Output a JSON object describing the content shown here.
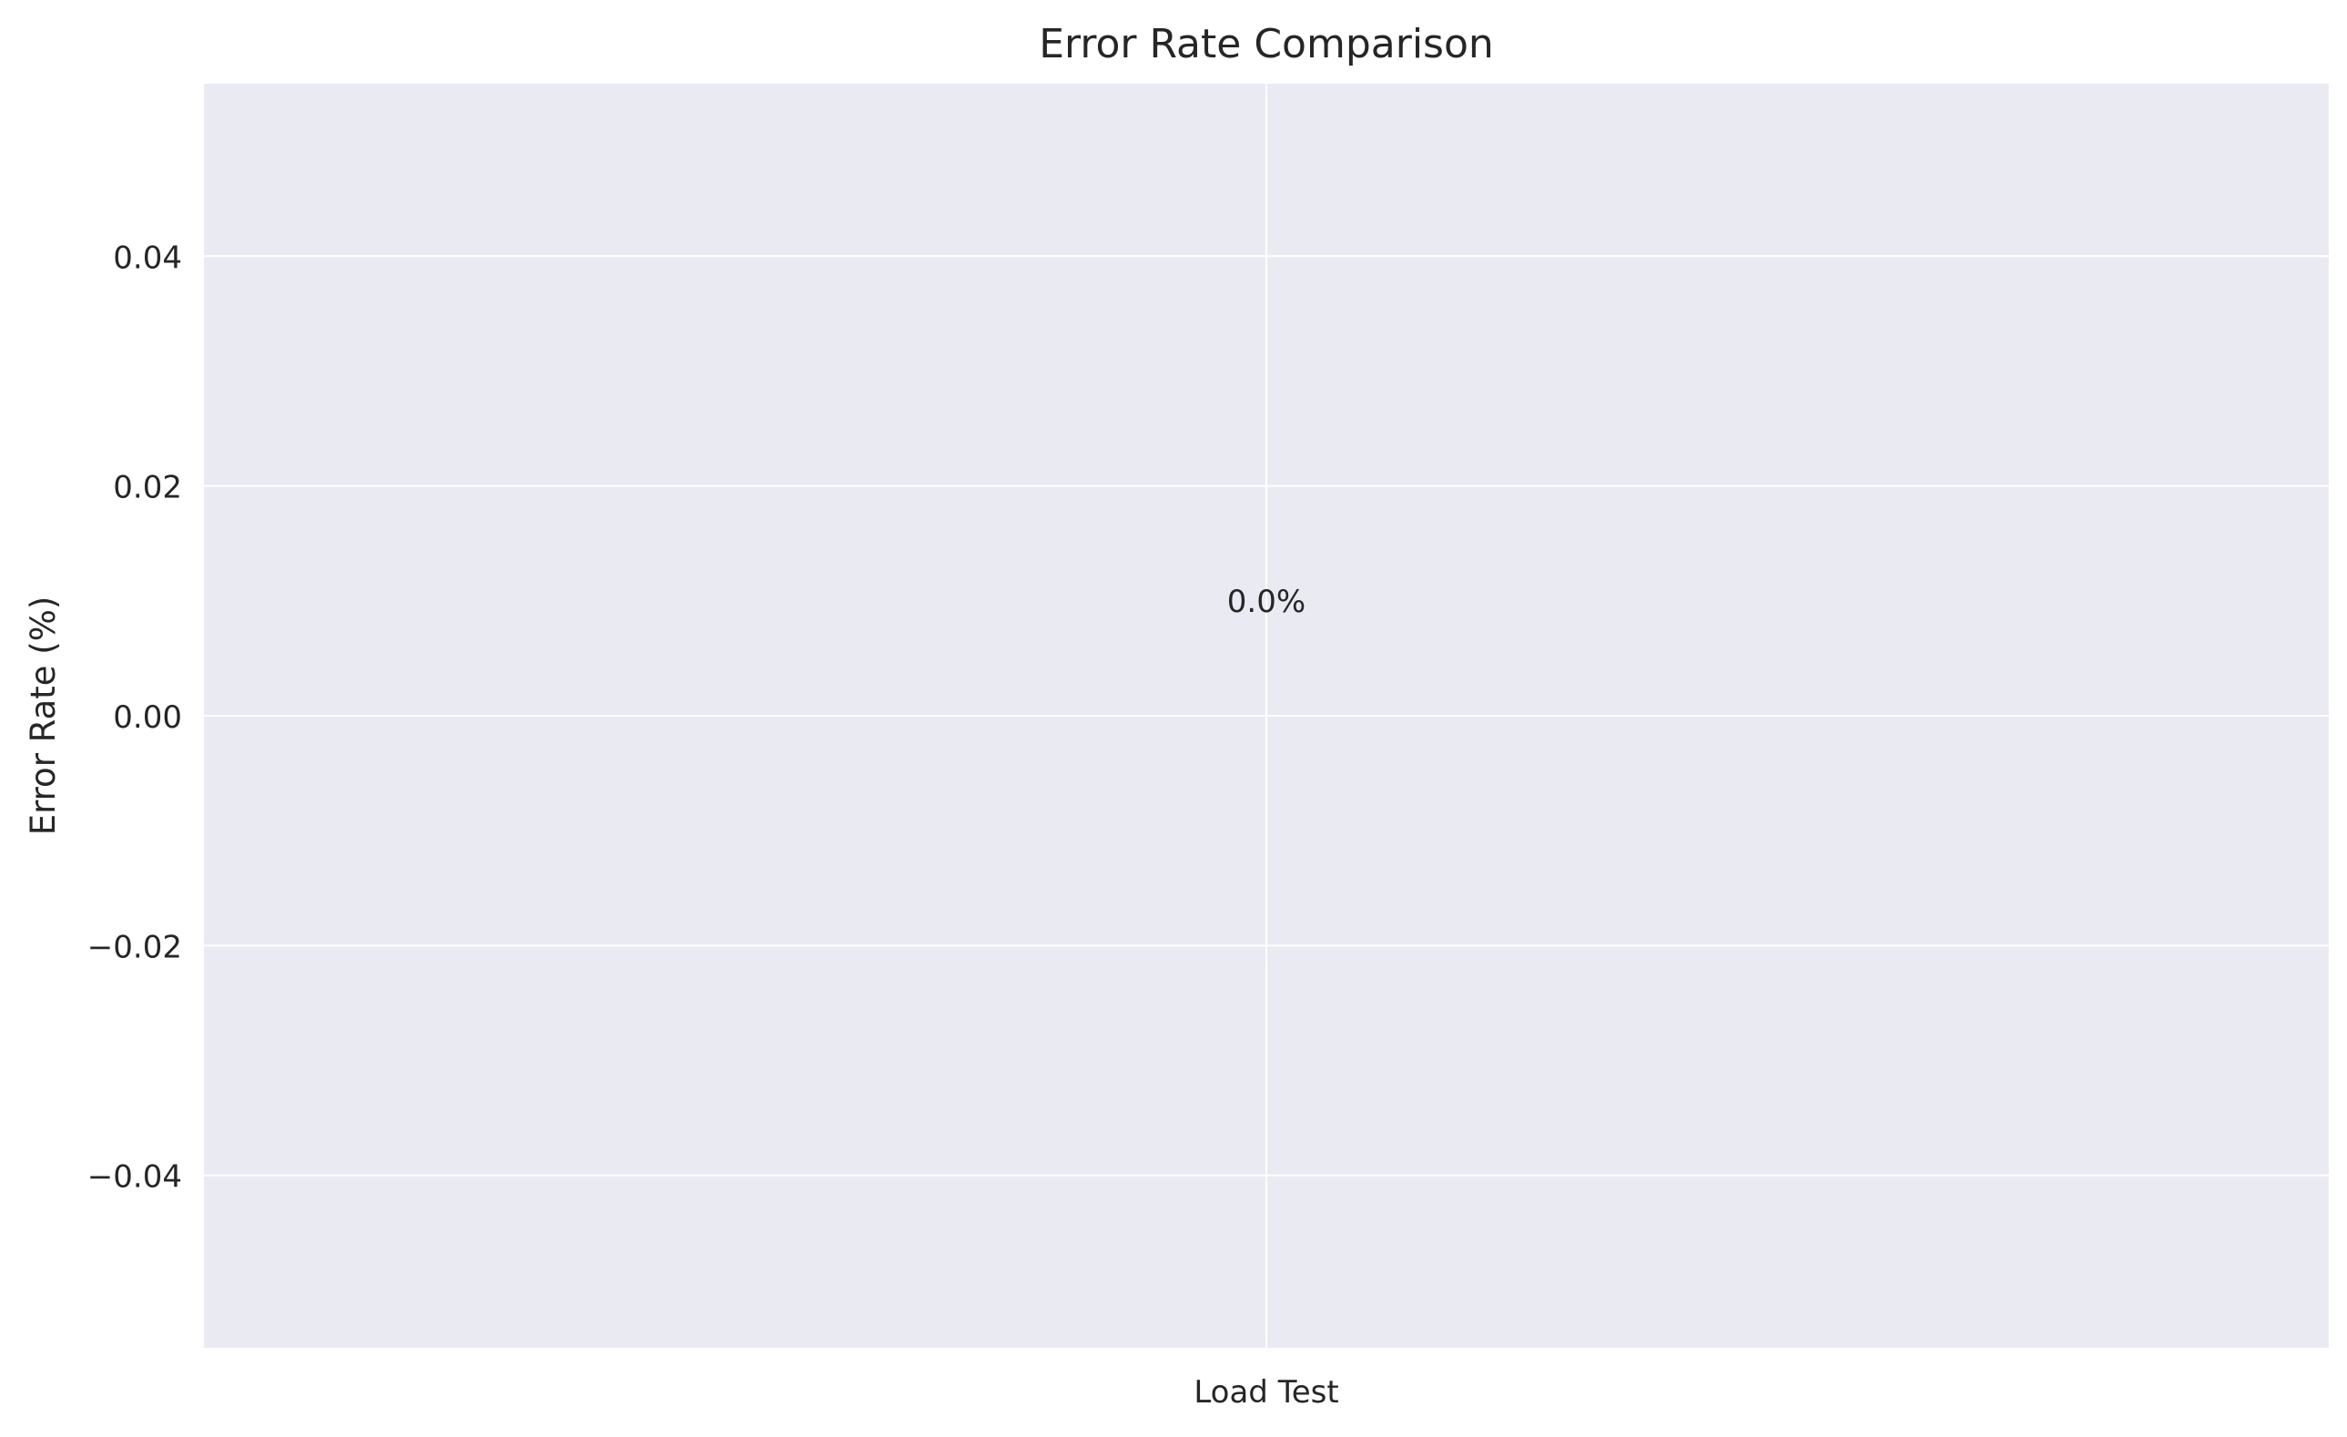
{
  "chart_data": {
    "type": "bar",
    "title": "Error Rate Comparison",
    "xlabel": "",
    "ylabel": "Error Rate (%)",
    "categories": [
      "Load Test"
    ],
    "values": [
      0.0
    ],
    "data_labels": [
      "0.0%"
    ],
    "ylim": [
      -0.055,
      0.055
    ],
    "yticks": [
      -0.04,
      -0.02,
      0.0,
      0.02,
      0.04
    ],
    "ytick_labels": [
      "−0.04",
      "−0.02",
      "0.00",
      "0.02",
      "0.04"
    ],
    "grid": true,
    "colors": {
      "plot_background": "#EAEAF2",
      "grid": "#FFFFFF",
      "text": "#262626"
    }
  }
}
